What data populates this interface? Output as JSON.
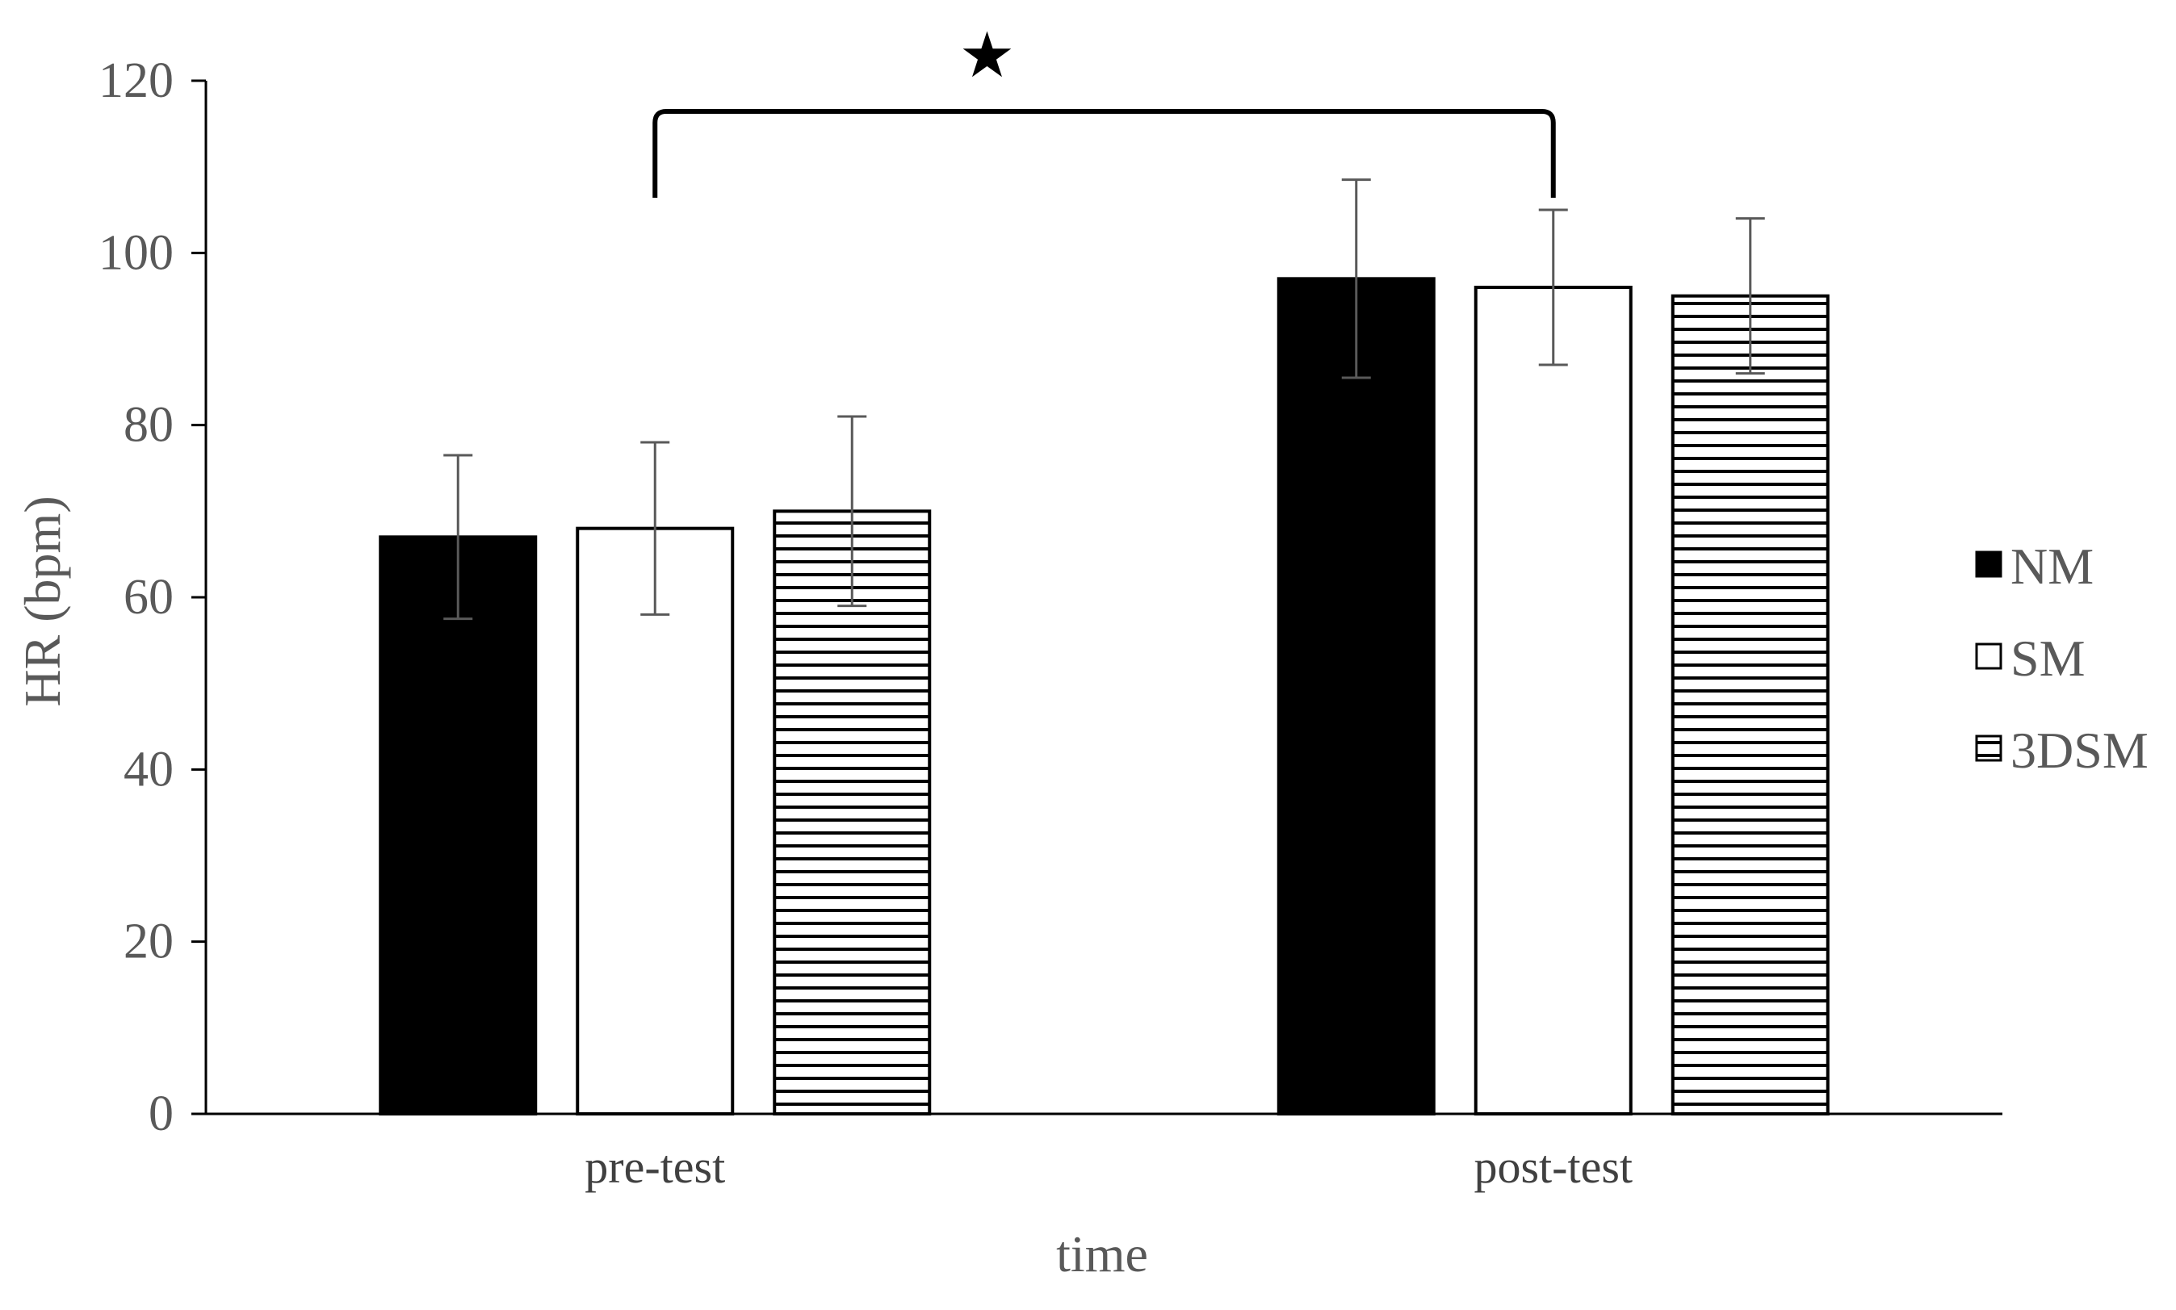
{
  "chart_data": {
    "type": "bar",
    "title": "",
    "xlabel": "time",
    "ylabel": "HR (bpm)",
    "ylim": [
      0,
      120
    ],
    "yticks": [
      0,
      20,
      40,
      60,
      80,
      100,
      120
    ],
    "grid": false,
    "legend_position": "right",
    "categories": [
      "pre-test",
      "post-test"
    ],
    "series": [
      {
        "name": "NM",
        "values": [
          67,
          97
        ],
        "errors": [
          9.5,
          11.5
        ],
        "fill": "solid",
        "color": "#000000"
      },
      {
        "name": "SM",
        "values": [
          68,
          96
        ],
        "errors": [
          10,
          9
        ],
        "fill": "empty",
        "color": "#ffffff"
      },
      {
        "name": "3DSM",
        "values": [
          70,
          95
        ],
        "errors": [
          11,
          9
        ],
        "fill": "horizontal-stripes",
        "color": "#000000"
      }
    ],
    "annotation": {
      "symbol": "★",
      "between": [
        "pre-test",
        "post-test"
      ]
    }
  }
}
